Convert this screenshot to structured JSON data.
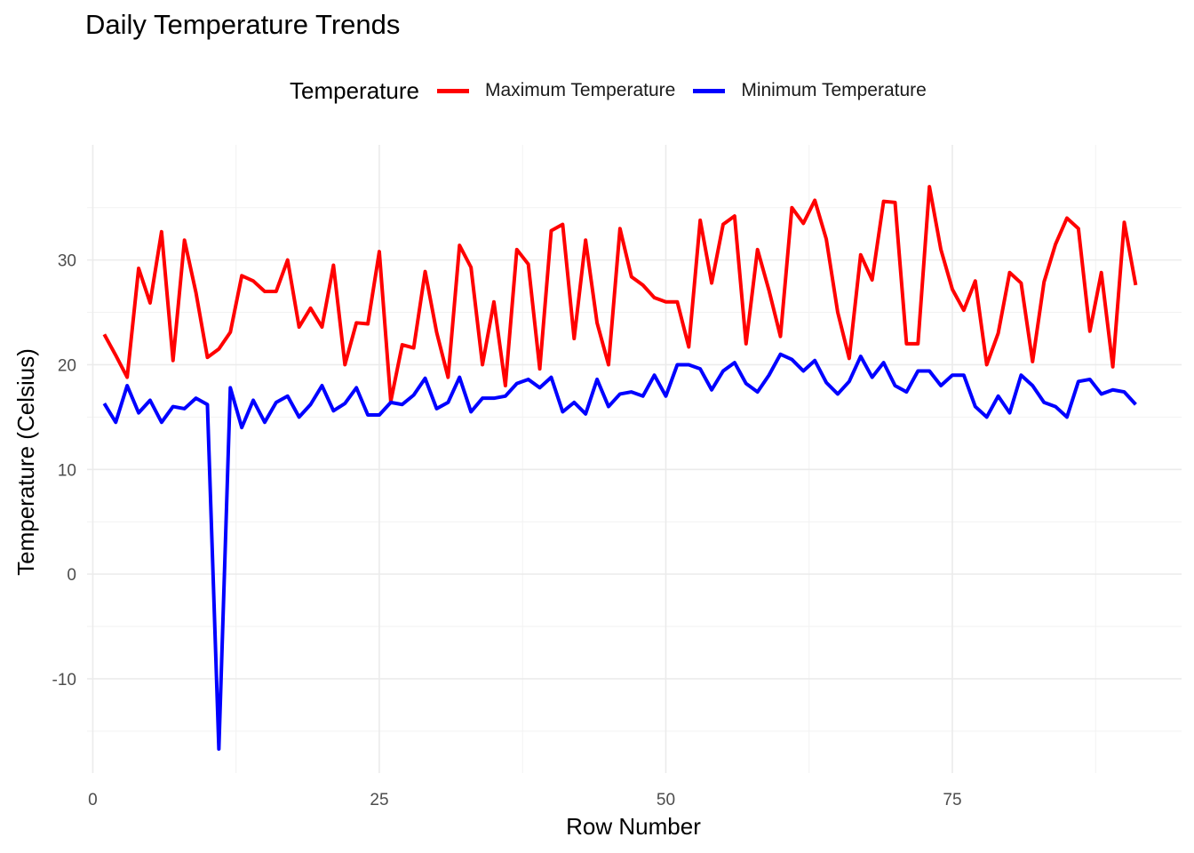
{
  "chart_data": {
    "type": "line",
    "title": "Daily Temperature Trends",
    "xlabel": "Row Number",
    "ylabel": "Temperature (Celsius)",
    "xlim": [
      -0.5,
      95
    ],
    "ylim": [
      -19,
      41
    ],
    "x_ticks": [
      0,
      25,
      50,
      75
    ],
    "y_ticks": [
      -10,
      0,
      10,
      20,
      30
    ],
    "grid": true,
    "legend": {
      "title": "Temperature",
      "position": "top"
    },
    "x": [
      1,
      2,
      3,
      4,
      5,
      6,
      7,
      8,
      9,
      10,
      11,
      12,
      13,
      14,
      15,
      16,
      17,
      18,
      19,
      20,
      21,
      22,
      23,
      24,
      25,
      26,
      27,
      28,
      29,
      30,
      31,
      32,
      33,
      34,
      35,
      36,
      37,
      38,
      39,
      40,
      41,
      42,
      43,
      44,
      45,
      46,
      47,
      48,
      49,
      50,
      51,
      52,
      53,
      54,
      55,
      56,
      57,
      58,
      59,
      60,
      61,
      62,
      63,
      64,
      65,
      66,
      67,
      68,
      69,
      70,
      71,
      72,
      73,
      74,
      75,
      76,
      77,
      78,
      79,
      80,
      81,
      82,
      83,
      84,
      85,
      86,
      87,
      88,
      89,
      90,
      91
    ],
    "series": [
      {
        "name": "Maximum Temperature",
        "color": "#ff0000",
        "values": [
          22.9,
          20.9,
          18.8,
          29.2,
          25.9,
          32.7,
          20.4,
          31.9,
          26.9,
          20.7,
          21.5,
          23.1,
          28.5,
          28.0,
          27.0,
          27.0,
          30.0,
          23.6,
          25.4,
          23.6,
          29.5,
          20.0,
          24.0,
          23.9,
          30.8,
          16.5,
          21.9,
          21.6,
          28.9,
          23.1,
          18.8,
          31.4,
          29.3,
          20.0,
          26.0,
          18.0,
          31.0,
          29.6,
          19.6,
          32.8,
          33.4,
          22.5,
          31.9,
          24.0,
          20.0,
          33.0,
          28.4,
          27.6,
          26.4,
          26.0,
          26.0,
          21.7,
          33.8,
          27.8,
          33.4,
          34.2,
          22.0,
          31.0,
          27.1,
          22.7,
          35.0,
          33.5,
          35.7,
          32.0,
          25.0,
          20.6,
          30.5,
          28.1,
          35.6,
          35.5,
          22.0,
          22.0,
          37.0,
          31.0,
          27.2,
          25.2,
          28.0,
          20.0,
          23.0,
          28.8,
          27.8,
          20.3,
          27.9,
          31.5,
          34.0,
          33.0,
          23.2,
          28.8,
          19.8,
          33.6,
          27.6
        ]
      },
      {
        "name": "Minimum Temperature",
        "color": "#0000ff",
        "values": [
          16.3,
          14.5,
          18.0,
          15.4,
          16.6,
          14.5,
          16.0,
          15.8,
          16.8,
          16.2,
          -16.7,
          17.8,
          14.0,
          16.6,
          14.5,
          16.4,
          17.0,
          15.0,
          16.2,
          18.0,
          15.6,
          16.3,
          17.8,
          15.2,
          15.2,
          16.4,
          16.2,
          17.1,
          18.7,
          15.8,
          16.4,
          18.8,
          15.5,
          16.8,
          16.8,
          17.0,
          18.2,
          18.6,
          17.8,
          18.8,
          15.5,
          16.4,
          15.3,
          18.6,
          16.0,
          17.2,
          17.4,
          17.0,
          19.0,
          17.0,
          20.0,
          20.0,
          19.6,
          17.6,
          19.4,
          20.2,
          18.2,
          17.4,
          19.0,
          21.0,
          20.5,
          19.4,
          20.4,
          18.3,
          17.2,
          18.4,
          20.8,
          18.8,
          20.2,
          18.0,
          17.4,
          19.4,
          19.4,
          18.0,
          19.0,
          19.0,
          16.0,
          15.0,
          17.0,
          15.4,
          19.0,
          18.0,
          16.4,
          16.0,
          15.0,
          18.4,
          18.6,
          17.2,
          17.6,
          17.4,
          16.2
        ]
      }
    ]
  }
}
